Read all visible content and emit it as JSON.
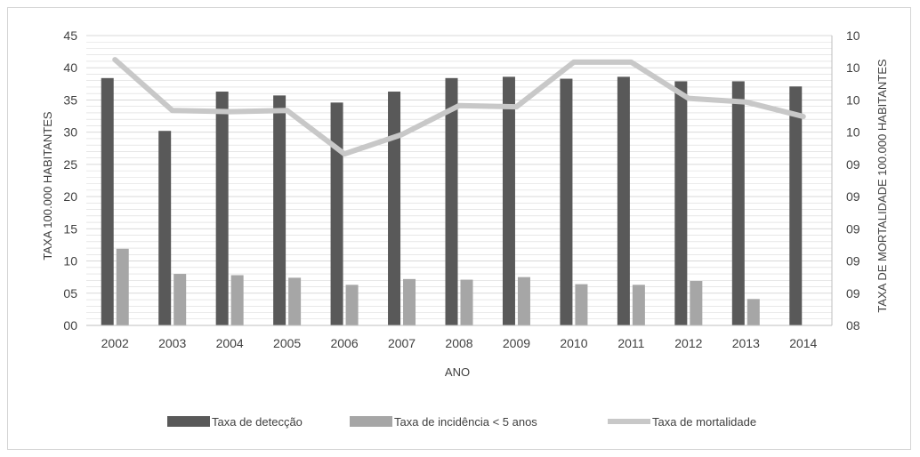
{
  "chart_data": {
    "type": "bar",
    "categories": [
      "2002",
      "2003",
      "2004",
      "2005",
      "2006",
      "2007",
      "2008",
      "2009",
      "2010",
      "2011",
      "2012",
      "2013",
      "2014"
    ],
    "series": [
      {
        "name": "Taxa de detecção",
        "kind": "bar",
        "axis": "left",
        "color": "#595959",
        "values": [
          38.4,
          30.2,
          36.3,
          35.7,
          34.6,
          36.3,
          38.4,
          38.6,
          38.3,
          38.6,
          37.9,
          37.9,
          37.1
        ]
      },
      {
        "name": "Taxa de incidência < 5 anos",
        "kind": "bar",
        "axis": "left",
        "color": "#a6a6a6",
        "values": [
          11.9,
          8.0,
          7.8,
          7.4,
          6.3,
          7.2,
          7.1,
          7.5,
          6.4,
          6.3,
          6.9,
          4.1,
          0
        ]
      },
      {
        "name": "Taxa de mortalidade",
        "kind": "line",
        "axis": "right",
        "color": "#c8c8c8",
        "values": [
          10.2,
          9.78,
          9.77,
          9.78,
          9.42,
          9.58,
          9.82,
          9.81,
          10.18,
          10.18,
          9.88,
          9.85,
          9.73
        ]
      }
    ],
    "yTicksLeft": [
      "00",
      "05",
      "10",
      "15",
      "20",
      "25",
      "30",
      "35",
      "40",
      "45"
    ],
    "yTicksRight": [
      "08",
      "09",
      "09",
      "09",
      "09",
      "09",
      "10",
      "10",
      "10",
      "10"
    ],
    "ylim_left": [
      0,
      45
    ],
    "ylim_right": [
      8,
      10.4
    ],
    "xlabel": "ANO",
    "ylabel_left": "TAXA 100.000 HABITANTES",
    "ylabel_right": "TAXA DE MORTALIDADE 100.000 HABITANTES",
    "grid": true,
    "legend_position": "bottom",
    "grid_color": "#d9d9d9",
    "axis_color": "#bfbfbf"
  }
}
